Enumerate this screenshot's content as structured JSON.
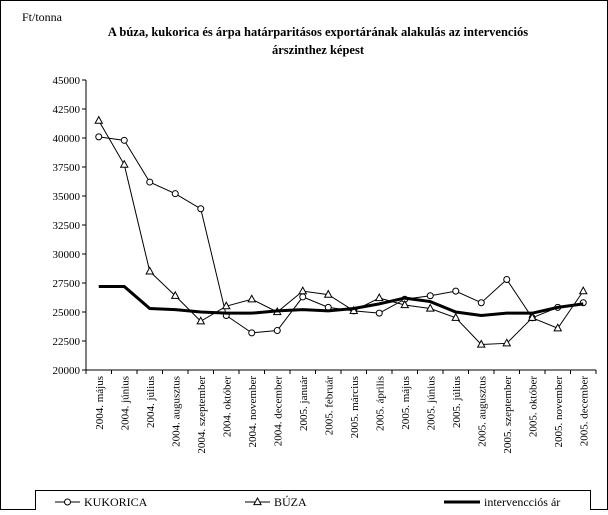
{
  "chart_data": {
    "type": "line",
    "title_line1": "A búza, kukorica és árpa határparitásos exportárának alakulás az intervenciós",
    "title_line2": "árszinthez képest",
    "ylabel": "Ft/tonna",
    "ylim": [
      20000,
      45000
    ],
    "yticks": [
      "45000",
      "42500",
      "40000",
      "37500",
      "35000",
      "32500",
      "30000",
      "27500",
      "25000",
      "22500",
      "20000"
    ],
    "categories": [
      "2004. május",
      "2004. június",
      "2004. július",
      "2004. augusztus",
      "2004. szeptember",
      "2004. október",
      "2004. november",
      "2004. december",
      "2005. január",
      "2005. február",
      "2005. március",
      "2005. április",
      "2005. május",
      "2005. június",
      "2005. július",
      "2005. augusztus",
      "2005. szeptember",
      "2005. október",
      "2005. november",
      "2005. december"
    ],
    "series": [
      {
        "name": "KUKORICA",
        "marker": "circle",
        "stroke": "#000000",
        "values": [
          40100,
          39800,
          36200,
          35200,
          33900,
          24700,
          23200,
          23400,
          26300,
          25400,
          25100,
          24900,
          26100,
          26400,
          26800,
          25800,
          27800,
          24500,
          25400,
          25800
        ]
      },
      {
        "name": "BÚZA",
        "marker": "triangle",
        "stroke": "#000000",
        "values": [
          41500,
          37700,
          28500,
          26400,
          24200,
          25500,
          26100,
          25000,
          26800,
          26500,
          25100,
          26200,
          25600,
          25300,
          24500,
          22200,
          22300,
          24500,
          23600,
          26800
        ]
      },
      {
        "name": "intervencciós ár",
        "marker": "none",
        "stroke": "#000000",
        "values": [
          27200,
          27200,
          25300,
          25200,
          25000,
          24900,
          24900,
          25100,
          25200,
          25100,
          25300,
          25700,
          26200,
          25900,
          25000,
          24700,
          24900,
          24900,
          25400,
          25700
        ]
      }
    ],
    "legend_placement": "bottom",
    "grid": false
  }
}
